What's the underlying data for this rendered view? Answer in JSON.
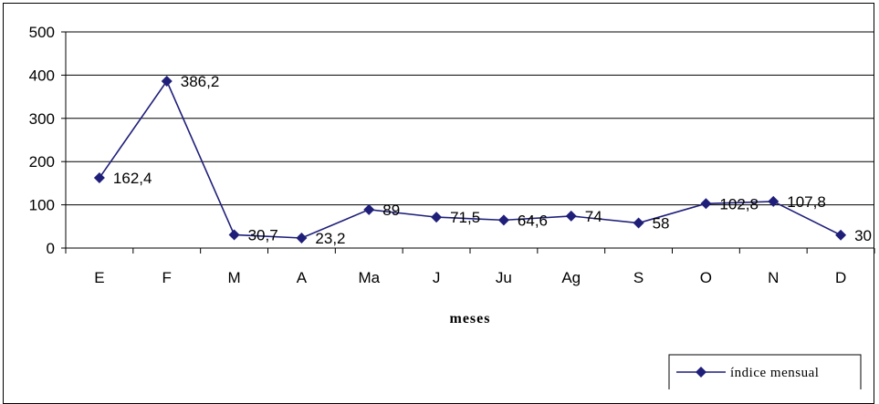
{
  "chart_data": {
    "type": "line",
    "categories": [
      "E",
      "F",
      "M",
      "A",
      "Ma",
      "J",
      "Ju",
      "Ag",
      "S",
      "O",
      "N",
      "D"
    ],
    "series": [
      {
        "name": "índice mensual",
        "values": [
          162.4,
          386.2,
          30.7,
          23.2,
          89,
          71.5,
          64.6,
          74,
          58,
          102.8,
          107.8,
          30
        ],
        "labels": [
          "162,4",
          "386,2",
          "30,7",
          "23,2",
          "89",
          "71,5",
          "64,6",
          "74",
          "58",
          "102,8",
          "107,8",
          "30"
        ],
        "color": "#1f1f7a"
      }
    ],
    "title": "",
    "xlabel": "meses",
    "ylabel": "",
    "ylim": [
      0,
      500
    ],
    "yticks": [
      0,
      100,
      200,
      300,
      400,
      500
    ],
    "grid": true,
    "legend": "bottom-right"
  }
}
